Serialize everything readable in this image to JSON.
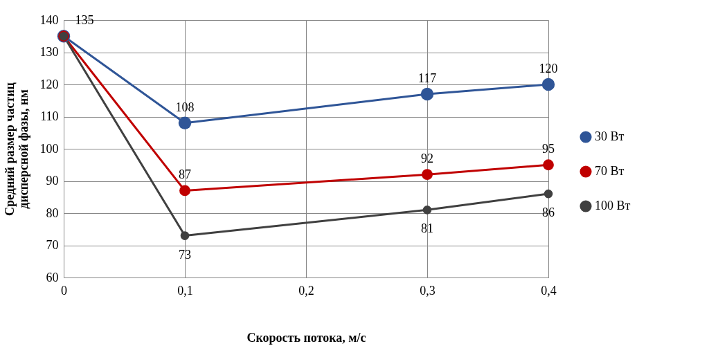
{
  "chart_data": {
    "type": "line",
    "xlabel": "Скорость потока, м/с",
    "ylabel": "Средний размер частиц дисперсной фазы, нм",
    "x": [
      0,
      0.1,
      0.3,
      0.4
    ],
    "series": [
      {
        "name": "30 Вт",
        "color": "#2f5597",
        "values": [
          135,
          108,
          117,
          120
        ],
        "value_labels": [
          "135",
          "108",
          "117",
          "120"
        ]
      },
      {
        "name": "70 Вт",
        "color": "#c00000",
        "values": [
          135,
          87,
          92,
          95
        ],
        "value_labels": [
          null,
          "87",
          "92",
          "95"
        ]
      },
      {
        "name": "100 Вт",
        "color": "#404040",
        "values": [
          135,
          73,
          81,
          86
        ],
        "value_labels": [
          null,
          "73",
          "81",
          "86"
        ]
      }
    ],
    "xlim": [
      0,
      0.4
    ],
    "xticks": [
      0,
      {
        "value": 0.1,
        "label": "0,1"
      },
      {
        "value": 0.2,
        "label": "0,2"
      },
      {
        "value": 0.3,
        "label": "0,3"
      },
      {
        "value": 0.4,
        "label": "0,4"
      }
    ],
    "ylim": [
      60,
      140
    ],
    "yticks": [
      60,
      70,
      80,
      90,
      100,
      110,
      120,
      130,
      140
    ],
    "grid": true,
    "legend": "right",
    "marker": "circle",
    "line_style": "solid"
  }
}
